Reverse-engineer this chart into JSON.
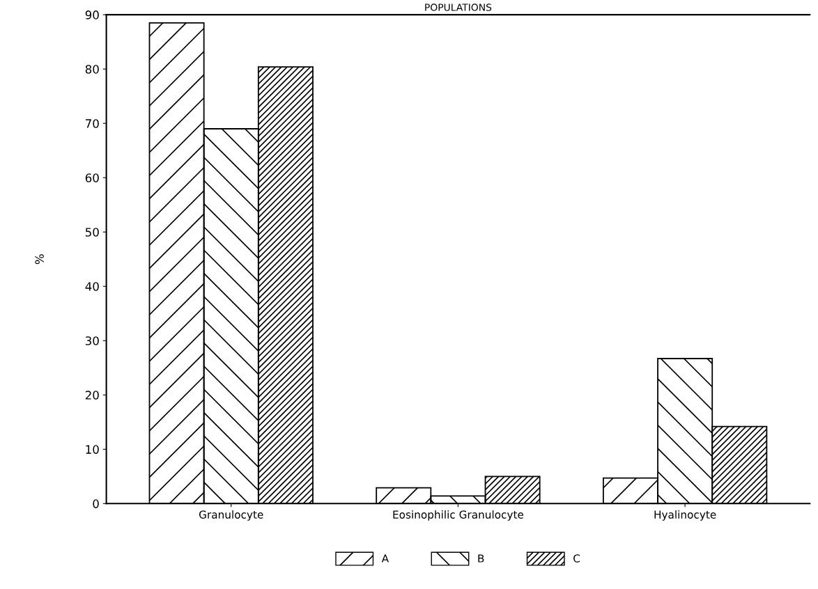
{
  "chart_data": {
    "type": "bar",
    "title": "POPULATIONS",
    "ylabel": "%",
    "categories": [
      "Granulocyte",
      "Eosinophilic Granulocyte",
      "Hyalinocyte"
    ],
    "series": [
      {
        "name": "A",
        "color": "#000000",
        "values": [
          88.5,
          2.9,
          4.7
        ]
      },
      {
        "name": "B",
        "color": "#000000",
        "values": [
          69,
          1.4,
          26.7
        ]
      },
      {
        "name": "C",
        "color": "#000000",
        "values": [
          80.4,
          5.0,
          14.2
        ]
      }
    ],
    "ylim": [
      0,
      90
    ],
    "yticks": [
      0,
      10,
      20,
      30,
      40,
      50,
      60,
      70,
      80,
      90
    ],
    "grid": false,
    "legend": "bottom"
  }
}
